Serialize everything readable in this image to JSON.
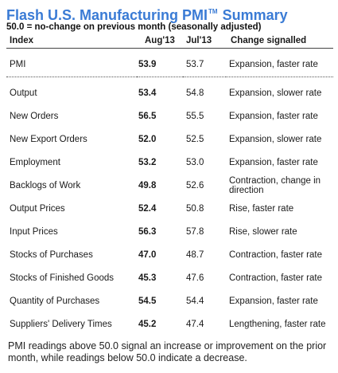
{
  "header": {
    "title_prefix": "Flash U.S. Manufacturing PMI",
    "title_mark": "TM",
    "title_suffix": "Summary",
    "subtitle": "50.0 = no-change on previous month (seasonally adjusted)"
  },
  "table": {
    "columns": [
      "Index",
      "Aug'13",
      "Jul'13",
      "Change signalled"
    ],
    "pmi": {
      "index": "PMI",
      "aug": "53.9",
      "jul": "53.7",
      "change": "Expansion, faster rate"
    },
    "rows": [
      {
        "index": "Output",
        "aug": "53.4",
        "jul": "54.8",
        "change": "Expansion, slower rate"
      },
      {
        "index": "New Orders",
        "aug": "56.5",
        "jul": "55.5",
        "change": "Expansion, faster rate"
      },
      {
        "index": "New Export Orders",
        "aug": "52.0",
        "jul": "52.5",
        "change": "Expansion, slower rate"
      },
      {
        "index": "Employment",
        "aug": "53.2",
        "jul": "53.0",
        "change": "Expansion, faster rate"
      },
      {
        "index": "Backlogs of Work",
        "aug": "49.8",
        "jul": "52.6",
        "change": "Contraction, change in direction"
      },
      {
        "index": "Output Prices",
        "aug": "52.4",
        "jul": "50.8",
        "change": "Rise, faster rate"
      },
      {
        "index": "Input Prices",
        "aug": "56.3",
        "jul": "57.8",
        "change": "Rise, slower rate"
      },
      {
        "index": "Stocks of Purchases",
        "aug": "47.0",
        "jul": "48.7",
        "change": "Contraction, faster rate"
      },
      {
        "index": "Stocks of Finished Goods",
        "aug": "45.3",
        "jul": "47.6",
        "change": "Contraction, faster rate"
      },
      {
        "index": "Quantity of Purchases",
        "aug": "54.5",
        "jul": "54.4",
        "change": "Expansion, faster rate"
      },
      {
        "index": "Suppliers' Delivery Times",
        "aug": "45.2",
        "jul": "47.4",
        "change": "Lengthening, faster rate"
      }
    ]
  },
  "footnote": "PMI readings above 50.0 signal an increase or improvement on the prior month, while readings below 50.0 indicate a decrease.",
  "colors": {
    "title": "#3a7bd5"
  }
}
